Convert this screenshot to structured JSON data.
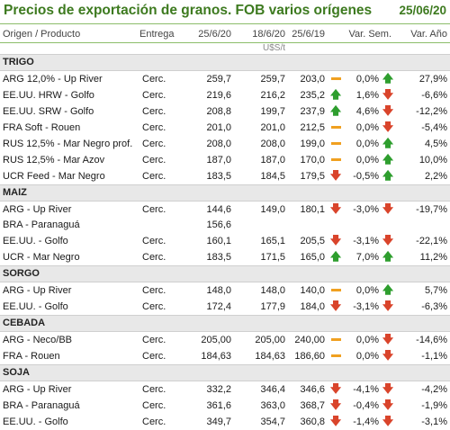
{
  "header": {
    "title": "Precios de exportación de granos. FOB varios orígenes",
    "date": "25/06/20"
  },
  "columns": [
    "Origen / Producto",
    "Entrega",
    "25/6/20",
    "18/6/20",
    "25/6/19",
    "Var. Sem.",
    "Var. Año"
  ],
  "unit": "U$S/t",
  "sections": [
    {
      "name": "TRIGO",
      "rows": [
        {
          "name": "ARG 12,0% - Up River",
          "del": "Cerc.",
          "p1": "259,7",
          "p2": "259,7",
          "p3": "203,0",
          "ws": "0,0%",
          "wi": "flat",
          "ya": "27,9%",
          "yi": "up"
        },
        {
          "name": "EE.UU. HRW - Golfo",
          "del": "Cerc.",
          "p1": "219,6",
          "p2": "216,2",
          "p3": "235,2",
          "ws": "1,6%",
          "wi": "up",
          "ya": "-6,6%",
          "yi": "down"
        },
        {
          "name": "EE.UU. SRW - Golfo",
          "del": "Cerc.",
          "p1": "208,8",
          "p2": "199,7",
          "p3": "237,9",
          "ws": "4,6%",
          "wi": "up",
          "ya": "-12,2%",
          "yi": "down"
        },
        {
          "name": "FRA Soft - Rouen",
          "del": "Cerc.",
          "p1": "201,0",
          "p2": "201,0",
          "p3": "212,5",
          "ws": "0,0%",
          "wi": "flat",
          "ya": "-5,4%",
          "yi": "down"
        },
        {
          "name": "RUS 12,5% - Mar Negro prof.",
          "del": "Cerc.",
          "p1": "208,0",
          "p2": "208,0",
          "p3": "199,0",
          "ws": "0,0%",
          "wi": "flat",
          "ya": "4,5%",
          "yi": "up"
        },
        {
          "name": "RUS 12,5% - Mar Azov",
          "del": "Cerc.",
          "p1": "187,0",
          "p2": "187,0",
          "p3": "170,0",
          "ws": "0,0%",
          "wi": "flat",
          "ya": "10,0%",
          "yi": "up"
        },
        {
          "name": "UCR Feed - Mar Negro",
          "del": "Cerc.",
          "p1": "183,5",
          "p2": "184,5",
          "p3": "179,5",
          "ws": "-0,5%",
          "wi": "down",
          "ya": "2,2%",
          "yi": "up"
        }
      ]
    },
    {
      "name": "MAIZ",
      "rows": [
        {
          "name": "ARG - Up River",
          "del": "Cerc.",
          "p1": "144,6",
          "p2": "149,0",
          "p3": "180,1",
          "ws": "-3,0%",
          "wi": "down",
          "ya": "-19,7%",
          "yi": "down",
          "p3i": "down"
        },
        {
          "name": "BRA - Paranaguá",
          "del": "",
          "p1": "156,6",
          "p2": "",
          "p3": "",
          "ws": "",
          "wi": "",
          "ya": "",
          "yi": ""
        },
        {
          "name": "EE.UU. - Golfo",
          "del": "Cerc.",
          "p1": "160,1",
          "p2": "165,1",
          "p3": "205,5",
          "ws": "-3,1%",
          "wi": "down",
          "ya": "-22,1%",
          "yi": "down",
          "p3i": "down"
        },
        {
          "name": "UCR - Mar Negro",
          "del": "Cerc.",
          "p1": "183,5",
          "p2": "171,5",
          "p3": "165,0",
          "ws": "7,0%",
          "wi": "up",
          "ya": "11,2%",
          "yi": "up",
          "p3i": "up"
        }
      ]
    },
    {
      "name": "SORGO",
      "rows": [
        {
          "name": "ARG - Up River",
          "del": "Cerc.",
          "p1": "148,0",
          "p2": "148,0",
          "p3": "140,0",
          "ws": "0,0%",
          "wi": "flat",
          "ya": "5,7%",
          "yi": "up",
          "p3i": "flat"
        },
        {
          "name": "EE.UU. - Golfo",
          "del": "Cerc.",
          "p1": "172,4",
          "p2": "177,9",
          "p3": "184,0",
          "ws": "-3,1%",
          "wi": "down",
          "ya": "-6,3%",
          "yi": "down",
          "p3i": "down"
        }
      ]
    },
    {
      "name": "CEBADA",
      "rows": [
        {
          "name": "ARG - Neco/BB",
          "del": "Cerc.",
          "p1": "205,00",
          "p2": "205,00",
          "p3": "240,00",
          "ws": "0,0%",
          "wi": "flat",
          "ya": "-14,6%",
          "yi": "down",
          "p3i": "flat"
        },
        {
          "name": "FRA - Rouen",
          "del": "Cerc.",
          "p1": "184,63",
          "p2": "184,63",
          "p3": "186,60",
          "ws": "0,0%",
          "wi": "flat",
          "ya": "-1,1%",
          "yi": "down",
          "p3i": "flat"
        }
      ]
    },
    {
      "name": "SOJA",
      "rows": [
        {
          "name": "ARG - Up River",
          "del": "Cerc.",
          "p1": "332,2",
          "p2": "346,4",
          "p3": "346,6",
          "ws": "-4,1%",
          "wi": "down",
          "ya": "-4,2%",
          "yi": "down",
          "p3i": "down"
        },
        {
          "name": "BRA - Paranaguá",
          "del": "Cerc.",
          "p1": "361,6",
          "p2": "363,0",
          "p3": "368,7",
          "ws": "-0,4%",
          "wi": "down",
          "ya": "-1,9%",
          "yi": "down",
          "p3i": "down"
        },
        {
          "name": "EE.UU. - Golfo",
          "del": "Cerc.",
          "p1": "349,7",
          "p2": "354,7",
          "p3": "360,8",
          "ws": "-1,4%",
          "wi": "down",
          "ya": "-3,1%",
          "yi": "down",
          "p3i": "down"
        }
      ]
    }
  ]
}
